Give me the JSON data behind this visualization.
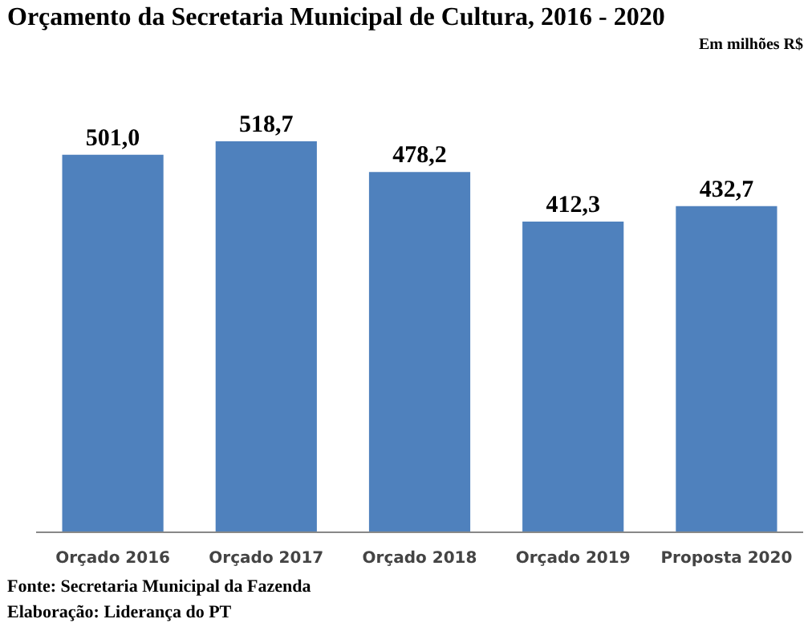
{
  "chart_data": {
    "type": "bar",
    "title": "Orçamento da Secretaria Municipal de Cultura, 2016 - 2020",
    "subtitle": "Em milhões R$",
    "categories": [
      "Orçado 2016",
      "Orçado 2017",
      "Orçado 2018",
      "Orçado 2019",
      "Proposta 2020"
    ],
    "values": [
      501.0,
      518.7,
      478.2,
      412.3,
      432.7
    ],
    "value_labels": [
      "501,0",
      "518,7",
      "478,2",
      "412,3",
      "432,7"
    ],
    "color": "#4f81bd",
    "grid": false,
    "annotations": [
      "Fonte: Secretaria Municipal da Fazenda",
      "Elaboração: Liderança do PT"
    ]
  }
}
